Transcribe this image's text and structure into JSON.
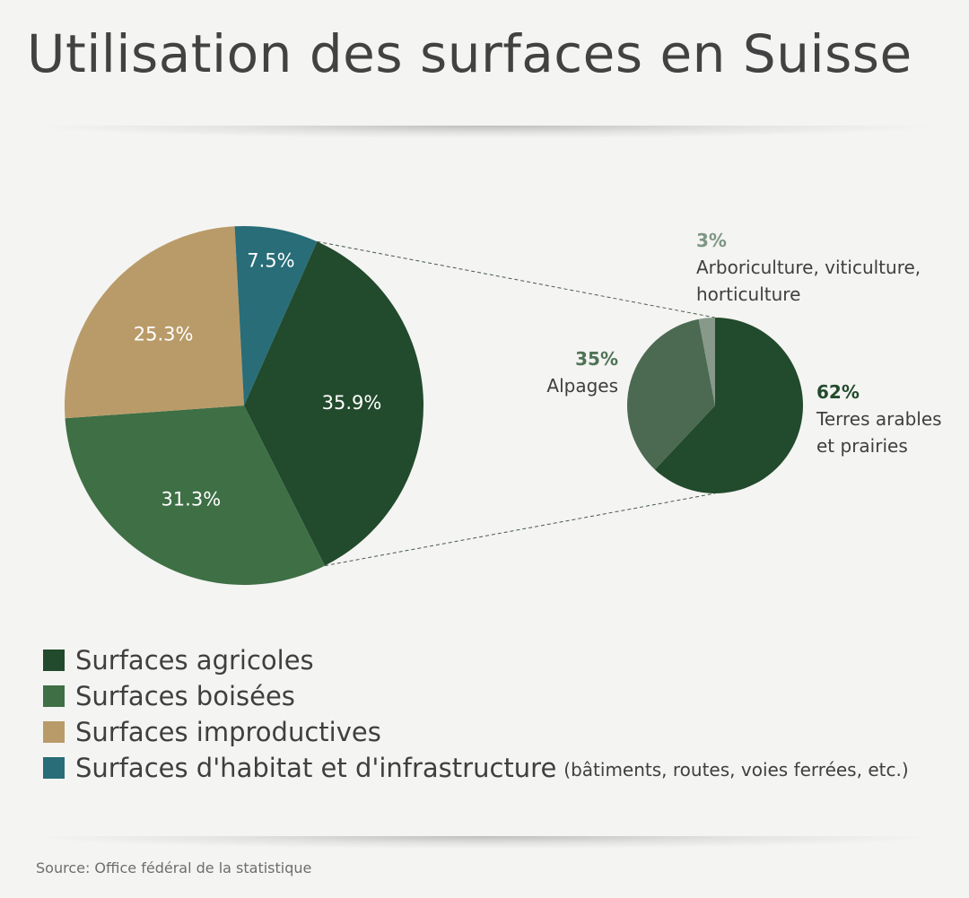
{
  "title": "Utilisation des surfaces en Suisse",
  "source": "Source: Office fédéral de la statistique",
  "colors": {
    "agricoles": "#224a2c",
    "boisees": "#3e6f45",
    "improductives": "#b99b69",
    "habitat": "#286d78",
    "alpages": "#4c6a52",
    "arboriculture": "#87998b",
    "sub_label_dark": "#224a2c",
    "sub_label_mid": "#4f7356",
    "sub_label_light": "#7f9684"
  },
  "legend": [
    {
      "label": "Surfaces agricoles",
      "color": "#224a2c",
      "note": ""
    },
    {
      "label": "Surfaces boisées",
      "color": "#3e6f45",
      "note": ""
    },
    {
      "label": "Surfaces improductives",
      "color": "#b99b69",
      "note": ""
    },
    {
      "label": "Surfaces d'habitat et d'infrastructure",
      "color": "#286d78",
      "note": "(bâtiments, routes, voies ferrées, etc.)"
    }
  ],
  "chart_data": [
    {
      "type": "pie",
      "title": "",
      "slices": [
        {
          "name": "Surfaces agricoles",
          "value": 35.9,
          "label": "35.9%",
          "color": "#224a2c"
        },
        {
          "name": "Surfaces boisées",
          "value": 31.3,
          "label": "31.3%",
          "color": "#3e6f45"
        },
        {
          "name": "Surfaces improductives",
          "value": 25.3,
          "label": "25.3%",
          "color": "#b99b69"
        },
        {
          "name": "Surfaces d'habitat et d'infrastructure",
          "value": 7.5,
          "label": "7.5%",
          "color": "#286d78"
        }
      ],
      "legend": "bottom-left"
    },
    {
      "type": "pie",
      "title": "",
      "slices": [
        {
          "name_lines": [
            "Terres arables",
            "et prairies"
          ],
          "value": 62,
          "label": "62%",
          "color": "#224a2c",
          "label_color": "#224a2c"
        },
        {
          "name_lines": [
            "Alpages"
          ],
          "value": 35,
          "label": "35%",
          "color": "#4c6a52",
          "label_color": "#4f7356"
        },
        {
          "name_lines": [
            "Arboriculture, viticulture,",
            "horticulture"
          ],
          "value": 3,
          "label": "3%",
          "color": "#87998b",
          "label_color": "#7f9684"
        }
      ]
    }
  ]
}
